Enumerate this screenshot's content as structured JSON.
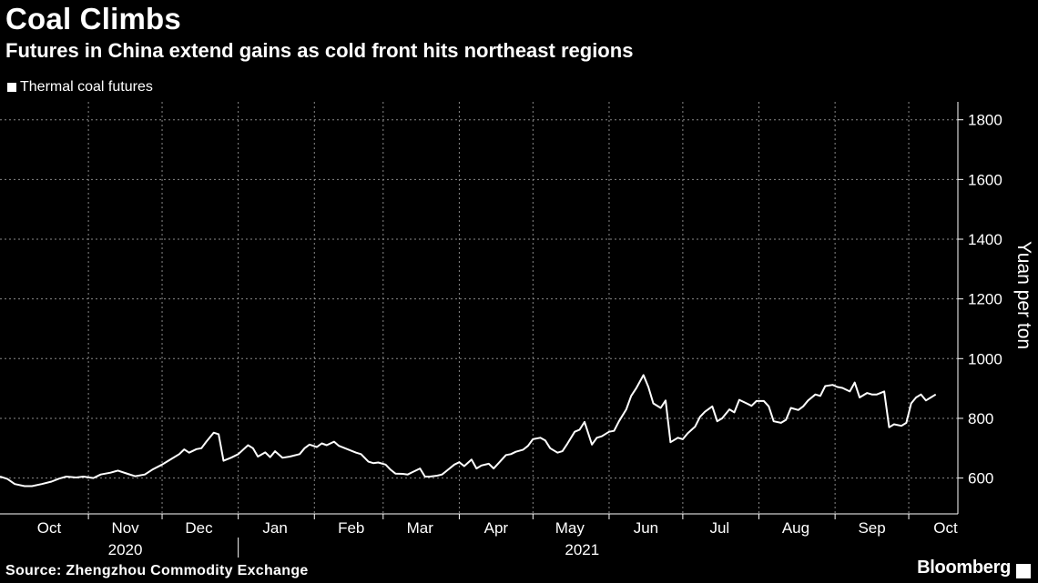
{
  "header": {
    "title": "Coal Climbs",
    "subtitle": "Futures in China extend gains as cold front hits northeast regions"
  },
  "legend": {
    "label": "Thermal coal futures"
  },
  "footer": {
    "source": "Source: Zhengzhou Commodity Exchange",
    "brand": "Bloomberg"
  },
  "colors": {
    "background": "#000000",
    "line": "#ffffff",
    "grid": "#8a8a8a"
  },
  "chart_data": {
    "type": "line",
    "title": "Coal Climbs",
    "subtitle": "Futures in China extend gains as cold front hits northeast regions",
    "xlabel": "",
    "ylabel": "Yuan per ton",
    "y_axis_side": "right",
    "ylim": [
      480,
      1860
    ],
    "yticks": [
      600,
      800,
      1000,
      1200,
      1400,
      1600,
      1800
    ],
    "xlim": [
      "2020-09-25",
      "2021-10-20"
    ],
    "month_labels": [
      {
        "label": "Oct",
        "date": "2020-10-15"
      },
      {
        "label": "Nov",
        "date": "2020-11-15"
      },
      {
        "label": "Dec",
        "date": "2020-12-15"
      },
      {
        "label": "Jan",
        "date": "2021-01-15"
      },
      {
        "label": "Feb",
        "date": "2021-02-15"
      },
      {
        "label": "Mar",
        "date": "2021-03-15"
      },
      {
        "label": "Apr",
        "date": "2021-04-15"
      },
      {
        "label": "May",
        "date": "2021-05-15"
      },
      {
        "label": "Jun",
        "date": "2021-06-15"
      },
      {
        "label": "Jul",
        "date": "2021-07-15"
      },
      {
        "label": "Aug",
        "date": "2021-08-15"
      },
      {
        "label": "Sep",
        "date": "2021-09-15"
      },
      {
        "label": "Oct",
        "date": "2021-10-15"
      }
    ],
    "month_boundaries": [
      "2020-10-31",
      "2020-11-30",
      "2020-12-31",
      "2021-01-31",
      "2021-02-28",
      "2021-03-31",
      "2021-04-30",
      "2021-05-31",
      "2021-06-30",
      "2021-07-31",
      "2021-08-31",
      "2021-09-30"
    ],
    "year_labels": [
      {
        "label": "2020",
        "date": "2020-11-15"
      },
      {
        "label": "2021",
        "date": "2021-05-20"
      }
    ],
    "year_divider": "2020-12-31",
    "grid": true,
    "legend_position": "top-left",
    "series": [
      {
        "name": "Thermal coal futures",
        "color": "#ffffff",
        "points": [
          [
            "2020-09-25",
            605
          ],
          [
            "2020-09-28",
            597
          ],
          [
            "2020-10-01",
            580
          ],
          [
            "2020-10-05",
            573
          ],
          [
            "2020-10-08",
            573
          ],
          [
            "2020-10-12",
            580
          ],
          [
            "2020-10-16",
            588
          ],
          [
            "2020-10-19",
            598
          ],
          [
            "2020-10-22",
            605
          ],
          [
            "2020-10-26",
            602
          ],
          [
            "2020-10-29",
            605
          ],
          [
            "2020-11-02",
            600
          ],
          [
            "2020-11-05",
            612
          ],
          [
            "2020-11-09",
            618
          ],
          [
            "2020-11-12",
            625
          ],
          [
            "2020-11-16",
            614
          ],
          [
            "2020-11-19",
            606
          ],
          [
            "2020-11-23",
            612
          ],
          [
            "2020-11-26",
            628
          ],
          [
            "2020-11-30",
            645
          ],
          [
            "2020-12-03",
            660
          ],
          [
            "2020-12-07",
            680
          ],
          [
            "2020-12-09",
            696
          ],
          [
            "2020-12-11",
            685
          ],
          [
            "2020-12-14",
            697
          ],
          [
            "2020-12-16",
            700
          ],
          [
            "2020-12-18",
            722
          ],
          [
            "2020-12-21",
            752
          ],
          [
            "2020-12-23",
            747
          ],
          [
            "2020-12-25",
            658
          ],
          [
            "2020-12-28",
            668
          ],
          [
            "2020-12-31",
            680
          ],
          [
            "2021-01-04",
            710
          ],
          [
            "2021-01-06",
            700
          ],
          [
            "2021-01-08",
            672
          ],
          [
            "2021-01-11",
            686
          ],
          [
            "2021-01-13",
            670
          ],
          [
            "2021-01-15",
            690
          ],
          [
            "2021-01-18",
            668
          ],
          [
            "2021-01-21",
            672
          ],
          [
            "2021-01-25",
            680
          ],
          [
            "2021-01-27",
            700
          ],
          [
            "2021-01-29",
            712
          ],
          [
            "2021-02-01",
            704
          ],
          [
            "2021-02-03",
            716
          ],
          [
            "2021-02-05",
            710
          ],
          [
            "2021-02-08",
            722
          ],
          [
            "2021-02-10",
            708
          ],
          [
            "2021-02-17",
            685
          ],
          [
            "2021-02-19",
            680
          ],
          [
            "2021-02-22",
            655
          ],
          [
            "2021-02-24",
            650
          ],
          [
            "2021-02-26",
            652
          ],
          [
            "2021-03-01",
            645
          ],
          [
            "2021-03-03",
            628
          ],
          [
            "2021-03-05",
            615
          ],
          [
            "2021-03-08",
            614
          ],
          [
            "2021-03-10",
            612
          ],
          [
            "2021-03-12",
            620
          ],
          [
            "2021-03-15",
            632
          ],
          [
            "2021-03-17",
            605
          ],
          [
            "2021-03-19",
            605
          ],
          [
            "2021-03-22",
            608
          ],
          [
            "2021-03-24",
            612
          ],
          [
            "2021-03-26",
            625
          ],
          [
            "2021-03-29",
            645
          ],
          [
            "2021-03-31",
            653
          ],
          [
            "2021-04-02",
            640
          ],
          [
            "2021-04-05",
            662
          ],
          [
            "2021-04-07",
            632
          ],
          [
            "2021-04-09",
            642
          ],
          [
            "2021-04-12",
            648
          ],
          [
            "2021-04-14",
            632
          ],
          [
            "2021-04-16",
            650
          ],
          [
            "2021-04-19",
            677
          ],
          [
            "2021-04-21",
            680
          ],
          [
            "2021-04-23",
            688
          ],
          [
            "2021-04-26",
            695
          ],
          [
            "2021-04-28",
            708
          ],
          [
            "2021-04-30",
            730
          ],
          [
            "2021-05-03",
            735
          ],
          [
            "2021-05-05",
            726
          ],
          [
            "2021-05-07",
            700
          ],
          [
            "2021-05-10",
            685
          ],
          [
            "2021-05-12",
            690
          ],
          [
            "2021-05-14",
            715
          ],
          [
            "2021-05-17",
            755
          ],
          [
            "2021-05-19",
            762
          ],
          [
            "2021-05-21",
            788
          ],
          [
            "2021-05-24",
            712
          ],
          [
            "2021-05-26",
            735
          ],
          [
            "2021-05-28",
            740
          ],
          [
            "2021-05-31",
            755
          ],
          [
            "2021-06-02",
            758
          ],
          [
            "2021-06-04",
            790
          ],
          [
            "2021-06-07",
            830
          ],
          [
            "2021-06-09",
            875
          ],
          [
            "2021-06-11",
            900
          ],
          [
            "2021-06-14",
            945
          ],
          [
            "2021-06-16",
            905
          ],
          [
            "2021-06-18",
            850
          ],
          [
            "2021-06-21",
            835
          ],
          [
            "2021-06-23",
            860
          ],
          [
            "2021-06-25",
            720
          ],
          [
            "2021-06-28",
            735
          ],
          [
            "2021-06-30",
            730
          ],
          [
            "2021-07-02",
            750
          ],
          [
            "2021-07-05",
            772
          ],
          [
            "2021-07-07",
            805
          ],
          [
            "2021-07-09",
            822
          ],
          [
            "2021-07-12",
            840
          ],
          [
            "2021-07-14",
            790
          ],
          [
            "2021-07-16",
            800
          ],
          [
            "2021-07-19",
            830
          ],
          [
            "2021-07-21",
            820
          ],
          [
            "2021-07-23",
            862
          ],
          [
            "2021-07-26",
            850
          ],
          [
            "2021-07-28",
            842
          ],
          [
            "2021-07-30",
            858
          ],
          [
            "2021-08-02",
            858
          ],
          [
            "2021-08-04",
            840
          ],
          [
            "2021-08-06",
            790
          ],
          [
            "2021-08-09",
            785
          ],
          [
            "2021-08-11",
            795
          ],
          [
            "2021-08-13",
            835
          ],
          [
            "2021-08-16",
            828
          ],
          [
            "2021-08-18",
            840
          ],
          [
            "2021-08-20",
            860
          ],
          [
            "2021-08-23",
            880
          ],
          [
            "2021-08-25",
            875
          ],
          [
            "2021-08-27",
            908
          ],
          [
            "2021-08-30",
            912
          ],
          [
            "2021-09-01",
            905
          ],
          [
            "2021-09-03",
            902
          ],
          [
            "2021-09-06",
            890
          ],
          [
            "2021-09-08",
            920
          ],
          [
            "2021-09-10",
            870
          ],
          [
            "2021-09-13",
            885
          ],
          [
            "2021-09-15",
            880
          ],
          [
            "2021-09-17",
            880
          ],
          [
            "2021-09-20",
            890
          ],
          [
            "2021-09-22",
            770
          ],
          [
            "2021-09-24",
            780
          ],
          [
            "2021-09-27",
            775
          ],
          [
            "2021-09-29",
            785
          ],
          [
            "2021-10-01",
            850
          ],
          [
            "2021-10-03",
            870
          ],
          [
            "2021-10-05",
            880
          ],
          [
            "2021-10-07",
            860
          ],
          [
            "2021-10-09",
            870
          ],
          [
            "2021-10-11",
            880
          ]
        ]
      }
    ]
  }
}
